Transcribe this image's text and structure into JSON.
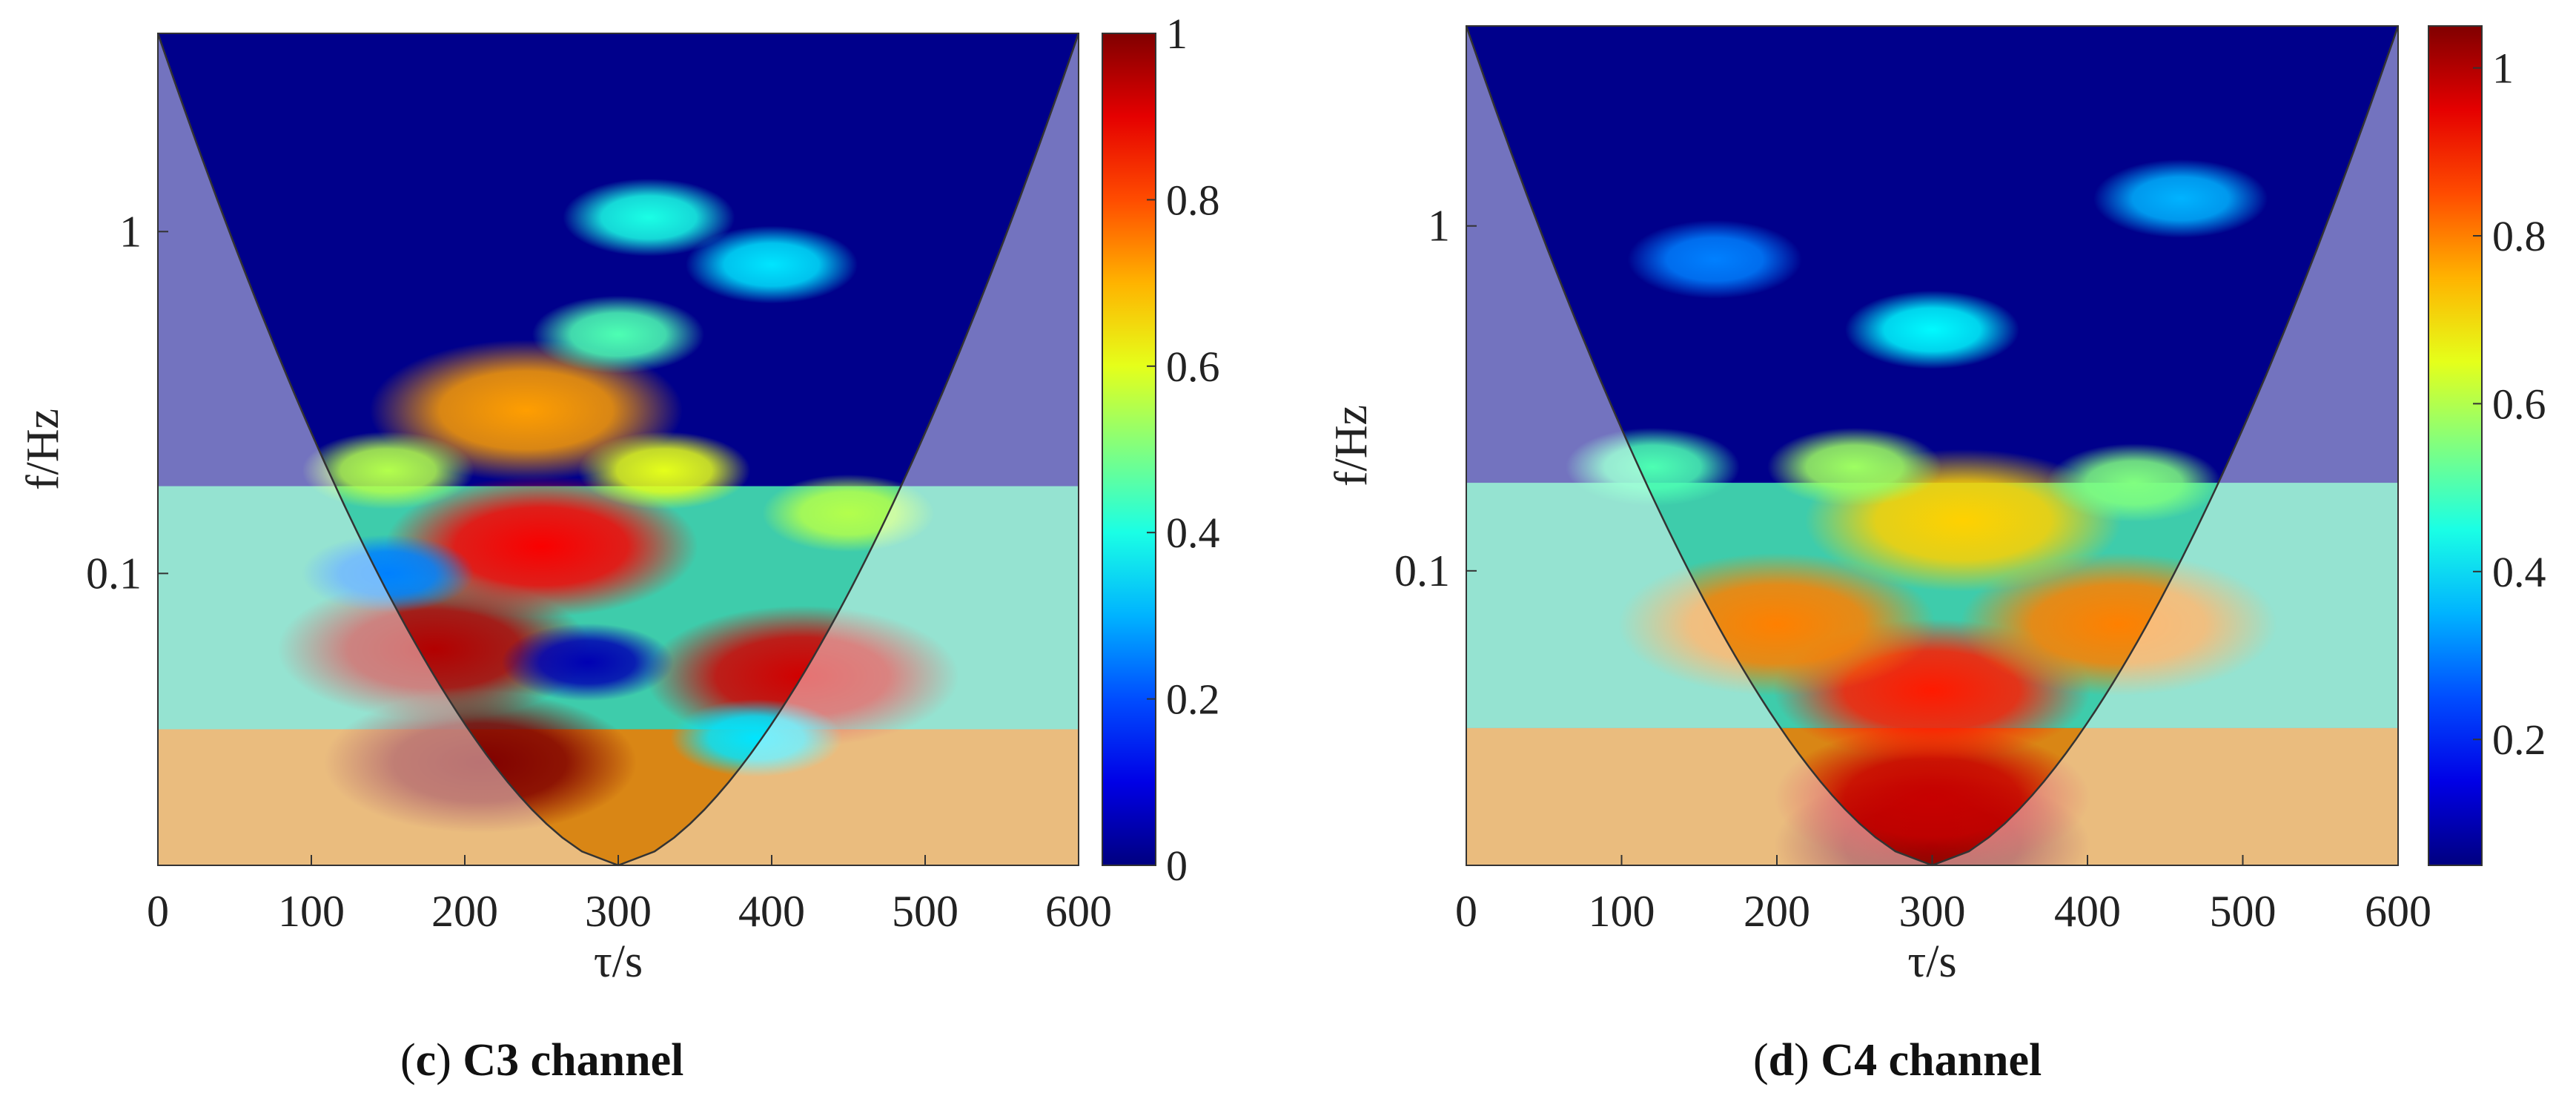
{
  "chart_data": [
    {
      "type": "heatmap",
      "title": "",
      "panel_letter": "c",
      "caption": "C3 channel",
      "xlabel": "τ/s",
      "ylabel": "f/Hz",
      "xlim": [
        0,
        600
      ],
      "ylim": [
        0.014,
        3.8
      ],
      "yscale": "log",
      "xticks": [
        0,
        100,
        200,
        300,
        400,
        500,
        600
      ],
      "yticks": [
        0.1,
        1
      ],
      "ytick_labels": [
        "0.1",
        "1"
      ],
      "colorbar": {
        "range": [
          0,
          1
        ],
        "ticks": [
          0,
          0.2,
          0.4,
          0.6,
          0.8,
          1
        ],
        "tick_labels": [
          "0",
          "0.2",
          "0.4",
          "0.6",
          "0.8",
          "1"
        ]
      },
      "colormap": "jet",
      "cone_of_influence": true,
      "features": [
        {
          "x": 210,
          "f": 0.028,
          "value": 1.0
        },
        {
          "x": 180,
          "f": 0.06,
          "value": 0.95
        },
        {
          "x": 420,
          "f": 0.05,
          "value": 0.92
        },
        {
          "x": 250,
          "f": 0.12,
          "value": 0.88
        },
        {
          "x": 240,
          "f": 0.3,
          "value": 0.72
        },
        {
          "x": 330,
          "f": 0.2,
          "value": 0.6
        },
        {
          "x": 150,
          "f": 0.2,
          "value": 0.55
        },
        {
          "x": 450,
          "f": 0.15,
          "value": 0.55
        },
        {
          "x": 280,
          "f": 0.055,
          "value": 0.05
        },
        {
          "x": 150,
          "f": 0.1,
          "value": 0.25
        },
        {
          "x": 390,
          "f": 0.033,
          "value": 0.35
        },
        {
          "x": 300,
          "f": 0.5,
          "value": 0.45
        },
        {
          "x": 320,
          "f": 1.1,
          "value": 0.4
        },
        {
          "x": 400,
          "f": 0.8,
          "value": 0.35
        }
      ]
    },
    {
      "type": "heatmap",
      "title": "",
      "panel_letter": "d",
      "caption": "C4 channel",
      "xlabel": "τ/s",
      "ylabel": "f/Hz",
      "xlim": [
        0,
        600
      ],
      "ylim": [
        0.014,
        3.8
      ],
      "yscale": "log",
      "xticks": [
        0,
        100,
        200,
        300,
        400,
        500,
        600
      ],
      "yticks": [
        0.1,
        1
      ],
      "ytick_labels": [
        "0.1",
        "1"
      ],
      "colorbar": {
        "range": [
          0.05,
          1.05
        ],
        "ticks": [
          0.2,
          0.4,
          0.6,
          0.8,
          1
        ],
        "tick_labels": [
          "0.2",
          "0.4",
          "0.6",
          "0.8",
          "1"
        ]
      },
      "colormap": "jet",
      "cone_of_influence": true,
      "features": [
        {
          "x": 300,
          "f": 0.016,
          "value": 1.05
        },
        {
          "x": 300,
          "f": 0.022,
          "value": 0.98
        },
        {
          "x": 300,
          "f": 0.045,
          "value": 0.9
        },
        {
          "x": 200,
          "f": 0.07,
          "value": 0.8
        },
        {
          "x": 420,
          "f": 0.07,
          "value": 0.8
        },
        {
          "x": 320,
          "f": 0.14,
          "value": 0.72
        },
        {
          "x": 250,
          "f": 0.2,
          "value": 0.58
        },
        {
          "x": 430,
          "f": 0.18,
          "value": 0.55
        },
        {
          "x": 120,
          "f": 0.2,
          "value": 0.5
        },
        {
          "x": 300,
          "f": 0.5,
          "value": 0.42
        },
        {
          "x": 460,
          "f": 1.2,
          "value": 0.35
        },
        {
          "x": 160,
          "f": 0.8,
          "value": 0.3
        }
      ]
    }
  ]
}
